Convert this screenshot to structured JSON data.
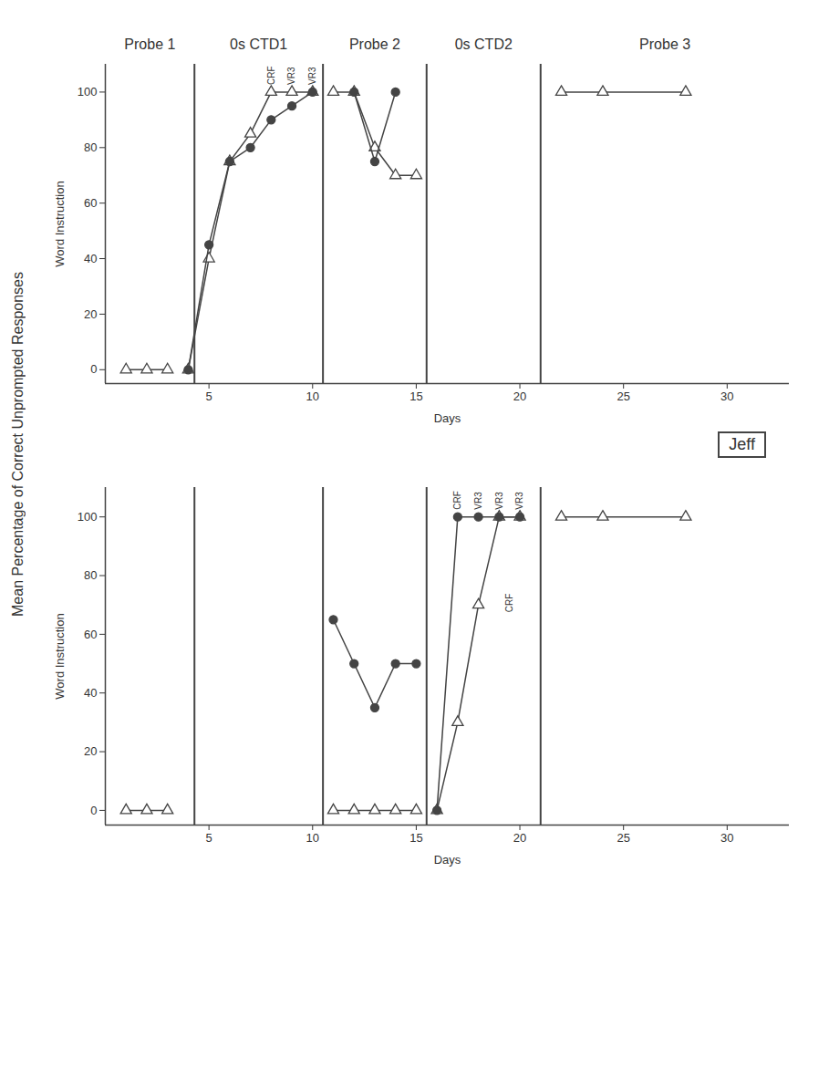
{
  "chart_data": [
    {
      "type": "line",
      "color": "#444444",
      "xlabel": "Days",
      "ylabel": "Word Instruction",
      "y_title": "Mean Percentage of Correct Unprompted Responses",
      "xlim": [
        0,
        33
      ],
      "xticks": [
        5,
        10,
        15,
        20,
        25,
        30
      ],
      "ylim": [
        -5,
        110
      ],
      "yticks": [
        0,
        20,
        40,
        60,
        80,
        100
      ],
      "phases": [
        "Probe 1",
        "0s CTD1",
        "Probe 2",
        "0s CTD2",
        "Probe 3"
      ],
      "phase_lines": [
        4.3,
        10.5,
        15.5,
        21
      ],
      "point_labels": [
        {
          "text": "CRF",
          "x": 8,
          "y": 100
        },
        {
          "text": "VR3",
          "x": 9,
          "y": 100
        },
        {
          "text": "VR3",
          "x": 10,
          "y": 100
        }
      ],
      "series": [
        {
          "marker": "triangle",
          "x": [
            1,
            2,
            3
          ],
          "values": [
            0,
            0,
            0
          ]
        },
        {
          "marker": "triangle",
          "x": [
            4,
            5,
            6,
            7,
            8,
            9,
            10
          ],
          "values": [
            0,
            40,
            75,
            85,
            100,
            100,
            100
          ]
        },
        {
          "marker": "circle",
          "x": [
            4,
            5,
            6,
            7,
            8,
            9,
            10
          ],
          "values": [
            0,
            45,
            75,
            80,
            90,
            95,
            100
          ]
        },
        {
          "marker": "triangle",
          "x": [
            11,
            12,
            13,
            14,
            15
          ],
          "values": [
            100,
            100,
            80,
            70,
            70
          ]
        },
        {
          "marker": "circle",
          "x": [
            12,
            13,
            14
          ],
          "values": [
            100,
            75,
            100
          ]
        },
        {
          "marker": "triangle",
          "x": [
            22,
            24,
            28
          ],
          "values": [
            100,
            100,
            100
          ]
        }
      ]
    },
    {
      "type": "line",
      "title": "Jeff",
      "color": "#444444",
      "xlabel": "Days",
      "ylabel": "Word Instruction",
      "xlim": [
        0,
        33
      ],
      "xticks": [
        5,
        10,
        15,
        20,
        25,
        30
      ],
      "ylim": [
        -5,
        110
      ],
      "yticks": [
        0,
        20,
        40,
        60,
        80,
        100
      ],
      "phase_lines": [
        4.3,
        10.5,
        15.5,
        21
      ],
      "point_labels": [
        {
          "text": "CRF",
          "x": 17,
          "y": 100
        },
        {
          "text": "VR3",
          "x": 18,
          "y": 100
        },
        {
          "text": "VR3",
          "x": 19,
          "y": 100
        },
        {
          "text": "VR3",
          "x": 20,
          "y": 100
        },
        {
          "text": "CRF",
          "x": 19.5,
          "y": 65
        }
      ],
      "series": [
        {
          "marker": "triangle",
          "x": [
            1,
            2,
            3
          ],
          "values": [
            0,
            0,
            0
          ]
        },
        {
          "marker": "triangle",
          "x": [
            11,
            12,
            13,
            14,
            15
          ],
          "values": [
            0,
            0,
            0,
            0,
            0
          ]
        },
        {
          "marker": "circle",
          "x": [
            11,
            12,
            13,
            14,
            15
          ],
          "values": [
            65,
            50,
            35,
            50,
            50
          ]
        },
        {
          "marker": "triangle",
          "x": [
            16,
            17,
            18,
            19,
            20
          ],
          "values": [
            0,
            30,
            70,
            100,
            100
          ]
        },
        {
          "marker": "circle",
          "x": [
            16,
            17,
            18,
            19,
            20
          ],
          "values": [
            0,
            100,
            100,
            100,
            100
          ]
        },
        {
          "marker": "triangle",
          "x": [
            22,
            24,
            28
          ],
          "values": [
            100,
            100,
            100
          ]
        }
      ]
    }
  ]
}
